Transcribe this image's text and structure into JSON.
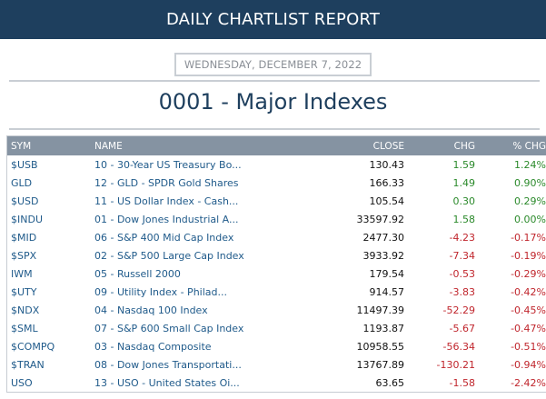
{
  "header": {
    "title": "DAILY CHARTLIST REPORT"
  },
  "report": {
    "date": "WEDNESDAY, DECEMBER 7, 2022",
    "list_title": "0001 - Major Indexes"
  },
  "table": {
    "columns": [
      "SYM",
      "NAME",
      "CLOSE",
      "CHG",
      "% CHG"
    ],
    "rows": [
      {
        "sym": "$USB",
        "name": "10 - 30-Year US Treasury Bo...",
        "close": "130.43",
        "chg": "1.59",
        "pct": "1.24%",
        "dir": "pos"
      },
      {
        "sym": "GLD",
        "name": "12 - GLD - SPDR Gold Shares",
        "close": "166.33",
        "chg": "1.49",
        "pct": "0.90%",
        "dir": "pos"
      },
      {
        "sym": "$USD",
        "name": "11 - US Dollar Index - Cash...",
        "close": "105.54",
        "chg": "0.30",
        "pct": "0.29%",
        "dir": "pos"
      },
      {
        "sym": "$INDU",
        "name": "01 - Dow Jones Industrial A...",
        "close": "33597.92",
        "chg": "1.58",
        "pct": "0.00%",
        "dir": "pos"
      },
      {
        "sym": "$MID",
        "name": "06 - S&P 400 Mid Cap Index",
        "close": "2477.30",
        "chg": "-4.23",
        "pct": "-0.17%",
        "dir": "neg"
      },
      {
        "sym": "$SPX",
        "name": "02 - S&P 500 Large Cap Index",
        "close": "3933.92",
        "chg": "-7.34",
        "pct": "-0.19%",
        "dir": "neg"
      },
      {
        "sym": "IWM",
        "name": "05 - Russell 2000",
        "close": "179.54",
        "chg": "-0.53",
        "pct": "-0.29%",
        "dir": "neg"
      },
      {
        "sym": "$UTY",
        "name": "09 - Utility Index - Philad...",
        "close": "914.57",
        "chg": "-3.83",
        "pct": "-0.42%",
        "dir": "neg"
      },
      {
        "sym": "$NDX",
        "name": "04 - Nasdaq 100 Index",
        "close": "11497.39",
        "chg": "-52.29",
        "pct": "-0.45%",
        "dir": "neg"
      },
      {
        "sym": "$SML",
        "name": "07 - S&P 600 Small Cap Index",
        "close": "1193.87",
        "chg": "-5.67",
        "pct": "-0.47%",
        "dir": "neg"
      },
      {
        "sym": "$COMPQ",
        "name": "03 - Nasdaq Composite",
        "close": "10958.55",
        "chg": "-56.34",
        "pct": "-0.51%",
        "dir": "neg"
      },
      {
        "sym": "$TRAN",
        "name": "08 - Dow Jones Transportati...",
        "close": "13767.89",
        "chg": "-130.21",
        "pct": "-0.94%",
        "dir": "neg"
      },
      {
        "sym": "USO",
        "name": "13 - USO - United States Oi...",
        "close": "63.65",
        "chg": "-1.58",
        "pct": "-2.42%",
        "dir": "neg"
      }
    ]
  },
  "colors": {
    "header_bg": "#1e3f5e",
    "table_header_bg": "#8593a2",
    "link": "#1f5a8a",
    "positive": "#2b8a2b",
    "negative": "#c0262d"
  }
}
